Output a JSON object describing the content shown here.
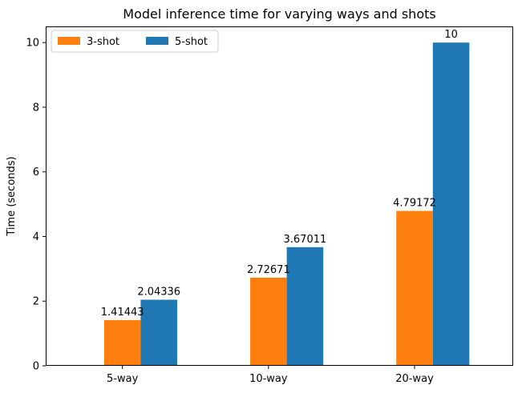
{
  "chart_data": {
    "type": "bar",
    "title": "Model inference time for varying ways and shots",
    "xlabel": "",
    "ylabel": "Time (seconds)",
    "categories": [
      "5-way",
      "10-way",
      "20-way"
    ],
    "series": [
      {
        "name": "3-shot",
        "values": [
          1.41443,
          2.72671,
          4.79172
        ],
        "labels": [
          "1.41443",
          "2.72671",
          "4.79172"
        ],
        "color": "#ff7f0e"
      },
      {
        "name": "5-shot",
        "values": [
          2.04336,
          3.67011,
          10
        ],
        "labels": [
          "2.04336",
          "3.67011",
          "10"
        ],
        "color": "#1f77b4"
      }
    ],
    "ylim": [
      0,
      10.5
    ],
    "yticks": [
      0,
      2,
      4,
      6,
      8,
      10
    ],
    "ytick_labels": [
      "0",
      "2",
      "4",
      "6",
      "8",
      "10"
    ],
    "grid": false,
    "legend": {
      "placement": "top-left",
      "columns": 2
    }
  }
}
